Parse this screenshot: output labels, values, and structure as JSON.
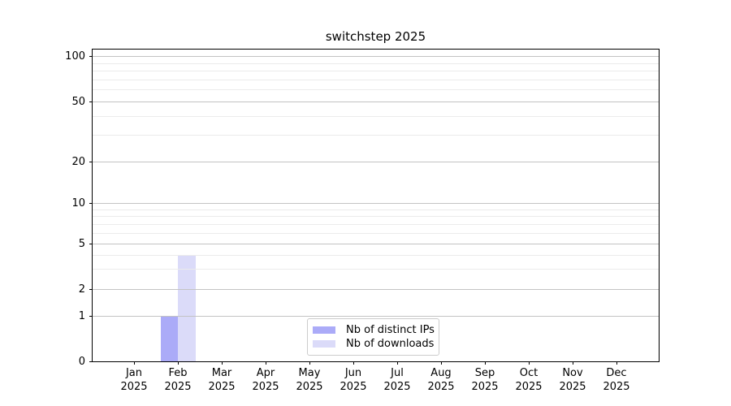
{
  "chart_data": {
    "type": "bar",
    "title": "switchstep 2025",
    "categories": [
      "Jan",
      "Feb",
      "Mar",
      "Apr",
      "May",
      "Jun",
      "Jul",
      "Aug",
      "Sep",
      "Oct",
      "Nov",
      "Dec"
    ],
    "x_year_label": "2025",
    "series": [
      {
        "name": "Nb of distinct IPs",
        "color": "#ababf8",
        "values": [
          0,
          1,
          0,
          0,
          0,
          0,
          0,
          0,
          0,
          0,
          0,
          0
        ]
      },
      {
        "name": "Nb of downloads",
        "color": "#dbdbf9",
        "values": [
          0,
          4,
          0,
          0,
          0,
          0,
          0,
          0,
          0,
          0,
          0,
          0
        ]
      }
    ],
    "yticks": [
      0,
      1,
      2,
      5,
      10,
      20,
      50,
      100
    ],
    "yscale": "symlog",
    "ylim": [
      0,
      110
    ],
    "grid": "major and minor horizontal gridlines, drawn over bars",
    "legend_position": "lower center",
    "colors": {
      "major_grid": "#c3c3c3",
      "minor_grid": "#ebebeb",
      "axis": "#000000",
      "background": "#ffffff"
    }
  }
}
